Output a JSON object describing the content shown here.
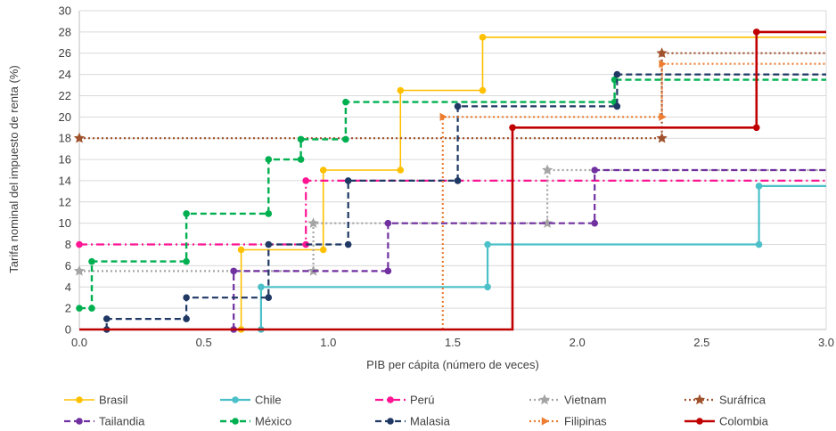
{
  "chart_data": {
    "type": "line",
    "step": true,
    "title": "",
    "xlabel": "PIB per cápita (número de veces)",
    "ylabel": "Tarifa nominal del impuesto de renta (%)",
    "xlim": [
      0,
      3
    ],
    "ylim": [
      0,
      30
    ],
    "xticks": [
      "0.0",
      "0.5",
      "1.0",
      "1.5",
      "2.0",
      "2.5",
      "3.0"
    ],
    "yticks": [
      "0",
      "2",
      "4",
      "6",
      "8",
      "10",
      "12",
      "14",
      "16",
      "18",
      "20",
      "22",
      "24",
      "26",
      "28",
      "30"
    ],
    "grid": {
      "horizontal": true,
      "vertical": false
    },
    "legend_position": "bottom",
    "series": [
      {
        "name": "Brasil",
        "color": "#FFC000",
        "dash": "solid",
        "marker": "circle",
        "width": 1.6,
        "points": [
          [
            0.65,
            0
          ],
          [
            0.65,
            7.5
          ],
          [
            0.98,
            7.5
          ],
          [
            0.98,
            15
          ],
          [
            1.29,
            15
          ],
          [
            1.29,
            22.5
          ],
          [
            1.62,
            22.5
          ],
          [
            1.62,
            27.5
          ],
          [
            3.0,
            27.5
          ]
        ],
        "markers": [
          [
            0.65,
            0
          ],
          [
            0.65,
            7.5
          ],
          [
            0.98,
            7.5
          ],
          [
            0.98,
            15
          ],
          [
            1.29,
            15
          ],
          [
            1.29,
            22.5
          ],
          [
            1.62,
            22.5
          ],
          [
            1.62,
            27.5
          ]
        ]
      },
      {
        "name": "Chile",
        "color": "#4BC0C8",
        "dash": "solid",
        "marker": "circle",
        "width": 2.2,
        "points": [
          [
            0.73,
            0
          ],
          [
            0.73,
            4
          ],
          [
            1.64,
            4
          ],
          [
            1.64,
            8
          ],
          [
            2.73,
            8
          ],
          [
            2.73,
            13.5
          ],
          [
            3.0,
            13.5
          ]
        ],
        "markers": [
          [
            0.73,
            0
          ],
          [
            0.73,
            4
          ],
          [
            1.64,
            4
          ],
          [
            1.64,
            8
          ],
          [
            2.73,
            8
          ],
          [
            2.73,
            13.5
          ]
        ]
      },
      {
        "name": "Perú",
        "color": "#FF1493",
        "dash": "dashdot",
        "marker": "circle",
        "width": 2.2,
        "points": [
          [
            0.0,
            8
          ],
          [
            0.91,
            8
          ],
          [
            0.91,
            14
          ],
          [
            3.0,
            14
          ]
        ],
        "markers": [
          [
            0.0,
            8
          ],
          [
            0.91,
            8
          ],
          [
            0.91,
            14
          ]
        ]
      },
      {
        "name": "Vietnam",
        "color": "#A5A5A5",
        "dash": "dot",
        "marker": "star",
        "width": 2.2,
        "points": [
          [
            0.0,
            5.5
          ],
          [
            0.94,
            5.5
          ],
          [
            0.94,
            10
          ],
          [
            1.88,
            10
          ],
          [
            1.88,
            15
          ],
          [
            3.0,
            15
          ]
        ],
        "markers": [
          [
            0.0,
            5.5
          ],
          [
            0.94,
            5.5
          ],
          [
            0.94,
            10
          ],
          [
            1.88,
            10
          ],
          [
            1.88,
            15
          ]
        ]
      },
      {
        "name": "Suráfrica",
        "color": "#A0522D",
        "dash": "dot",
        "marker": "star",
        "width": 2.2,
        "points": [
          [
            0.0,
            18
          ],
          [
            2.34,
            18
          ],
          [
            2.34,
            26
          ],
          [
            3.0,
            26
          ]
        ],
        "markers": [
          [
            0.0,
            18
          ],
          [
            2.34,
            18
          ],
          [
            2.34,
            26
          ]
        ]
      },
      {
        "name": "Tailandia",
        "color": "#7030A0",
        "dash": "dash",
        "marker": "circle",
        "width": 2.2,
        "points": [
          [
            0.62,
            0
          ],
          [
            0.62,
            5.5
          ],
          [
            1.24,
            5.5
          ],
          [
            1.24,
            10
          ],
          [
            2.07,
            10
          ],
          [
            2.07,
            15
          ],
          [
            3.0,
            15
          ]
        ],
        "markers": [
          [
            0.62,
            0
          ],
          [
            0.62,
            5.5
          ],
          [
            1.24,
            5.5
          ],
          [
            1.24,
            10
          ],
          [
            2.07,
            10
          ],
          [
            2.07,
            15
          ]
        ]
      },
      {
        "name": "México",
        "color": "#00B050",
        "dash": "dash",
        "marker": "circle",
        "width": 2.4,
        "points": [
          [
            0.0,
            2
          ],
          [
            0.05,
            2
          ],
          [
            0.05,
            6.4
          ],
          [
            0.43,
            6.4
          ],
          [
            0.43,
            10.9
          ],
          [
            0.76,
            10.9
          ],
          [
            0.76,
            16
          ],
          [
            0.89,
            16
          ],
          [
            0.89,
            17.9
          ],
          [
            1.07,
            17.9
          ],
          [
            1.07,
            21.4
          ],
          [
            2.15,
            21.4
          ],
          [
            2.15,
            23.5
          ],
          [
            3.0,
            23.5
          ]
        ],
        "markers": [
          [
            0.0,
            2
          ],
          [
            0.05,
            2
          ],
          [
            0.05,
            6.4
          ],
          [
            0.43,
            6.4
          ],
          [
            0.43,
            10.9
          ],
          [
            0.76,
            10.9
          ],
          [
            0.76,
            16
          ],
          [
            0.89,
            16
          ],
          [
            0.89,
            17.9
          ],
          [
            1.07,
            17.9
          ],
          [
            1.07,
            21.4
          ],
          [
            2.15,
            21.4
          ],
          [
            2.15,
            23.5
          ]
        ]
      },
      {
        "name": "Malasia",
        "color": "#1F3864",
        "dash": "dash",
        "marker": "circle",
        "width": 2.2,
        "points": [
          [
            0.11,
            0
          ],
          [
            0.11,
            1
          ],
          [
            0.43,
            1
          ],
          [
            0.43,
            3
          ],
          [
            0.76,
            3
          ],
          [
            0.76,
            8
          ],
          [
            1.08,
            8
          ],
          [
            1.08,
            14
          ],
          [
            1.52,
            14
          ],
          [
            1.52,
            21
          ],
          [
            2.16,
            21
          ],
          [
            2.16,
            24
          ],
          [
            3.0,
            24
          ]
        ],
        "markers": [
          [
            0.11,
            0
          ],
          [
            0.11,
            1
          ],
          [
            0.43,
            1
          ],
          [
            0.43,
            3
          ],
          [
            0.76,
            3
          ],
          [
            0.76,
            8
          ],
          [
            1.08,
            8
          ],
          [
            1.08,
            14
          ],
          [
            1.52,
            14
          ],
          [
            1.52,
            21
          ],
          [
            2.16,
            21
          ],
          [
            2.16,
            24
          ]
        ]
      },
      {
        "name": "Filipinas",
        "color": "#ED7D31",
        "dash": "dot",
        "marker": "triangle",
        "width": 2.2,
        "points": [
          [
            1.46,
            0
          ],
          [
            1.46,
            20
          ],
          [
            2.34,
            20
          ],
          [
            2.34,
            25
          ],
          [
            3.0,
            25
          ]
        ],
        "markers": [
          [
            1.46,
            20
          ],
          [
            2.34,
            20
          ],
          [
            2.34,
            25
          ]
        ]
      },
      {
        "name": "Colombia",
        "color": "#C00000",
        "dash": "solid",
        "marker": "circle",
        "width": 2.6,
        "points": [
          [
            0.0,
            0
          ],
          [
            1.74,
            0
          ],
          [
            1.74,
            19
          ],
          [
            2.72,
            19
          ],
          [
            2.72,
            28
          ],
          [
            3.0,
            28
          ]
        ],
        "markers": [
          [
            1.74,
            19
          ],
          [
            2.72,
            19
          ],
          [
            2.72,
            28
          ]
        ]
      }
    ]
  }
}
